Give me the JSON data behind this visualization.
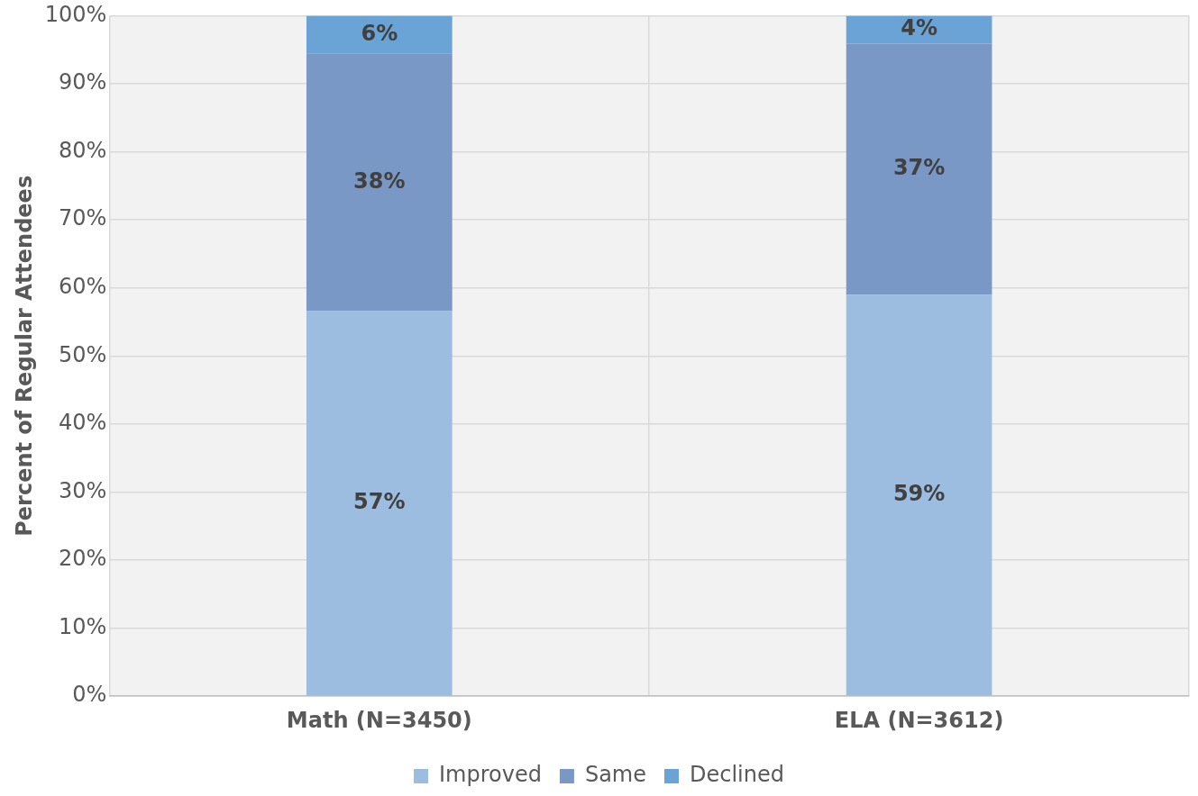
{
  "chart_data": {
    "type": "bar",
    "stacked": true,
    "ylabel": "Percent of Regular Attendees",
    "categories": [
      "Math (N=3450)",
      "ELA (N=3612)"
    ],
    "series": [
      {
        "name": "Improved",
        "color": "#9dbde0",
        "values": [
          56.6,
          59.0
        ],
        "value_labels": [
          "57%",
          "59%"
        ]
      },
      {
        "name": "Same",
        "color": "#7a98c6",
        "values": [
          37.8,
          36.9
        ],
        "value_labels": [
          "38%",
          "37%"
        ]
      },
      {
        "name": "Declined",
        "color": "#6aa3d5",
        "values": [
          5.6,
          4.1
        ],
        "value_labels": [
          "6%",
          "4%"
        ]
      }
    ],
    "ylim": [
      0,
      100
    ],
    "yticks": [
      {
        "value": 0,
        "label": "0%"
      },
      {
        "value": 10,
        "label": "10%"
      },
      {
        "value": 20,
        "label": "20%"
      },
      {
        "value": 30,
        "label": "30%"
      },
      {
        "value": 40,
        "label": "40%"
      },
      {
        "value": 50,
        "label": "50%"
      },
      {
        "value": 60,
        "label": "60%"
      },
      {
        "value": 70,
        "label": "70%"
      },
      {
        "value": 80,
        "label": "80%"
      },
      {
        "value": 90,
        "label": "90%"
      },
      {
        "value": 100,
        "label": "100%"
      }
    ],
    "grid": true,
    "legend": "bottom"
  }
}
